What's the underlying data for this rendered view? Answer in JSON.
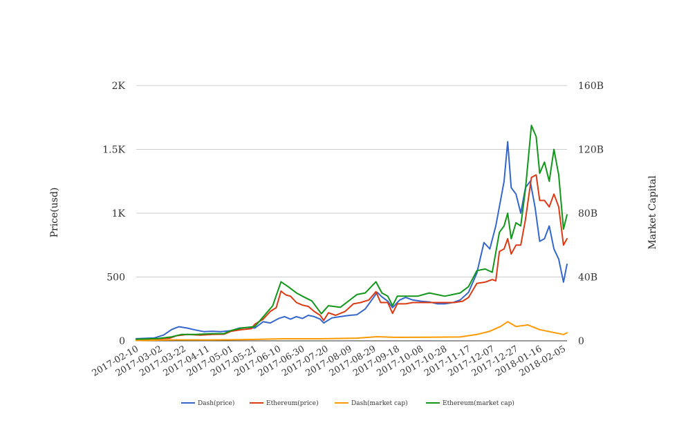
{
  "chart_data": {
    "type": "line",
    "title": "",
    "xlabel": "",
    "ylabel": "Price(usd)",
    "y2label": "Market Capital",
    "ylim": [
      0,
      2000
    ],
    "y2lim": [
      0,
      160
    ],
    "grid": true,
    "legend_position": "bottom",
    "x_start": "2017-02-10",
    "x_end": "2018-02-08",
    "x_ticks": [
      "2017-02-10",
      "2017-03-02",
      "2017-03-22",
      "2017-04-11",
      "2017-05-01",
      "2017-05-21",
      "2017-06-10",
      "2017-06-30",
      "2017-07-20",
      "2017-08-09",
      "2017-08-29",
      "2017-09-18",
      "2017-10-08",
      "2017-10-28",
      "2017-11-17",
      "2017-12-07",
      "2017-12-27",
      "2018-01-16",
      "2018-02-05"
    ],
    "y_ticks": [
      {
        "value": 0,
        "label": "0"
      },
      {
        "value": 500,
        "label": "500"
      },
      {
        "value": 1000,
        "label": "1K"
      },
      {
        "value": 1500,
        "label": "1.5K"
      },
      {
        "value": 2000,
        "label": "2K"
      }
    ],
    "y2_ticks": [
      {
        "value": 0,
        "label": "0"
      },
      {
        "value": 40,
        "label": "40B"
      },
      {
        "value": 80,
        "label": "80B"
      },
      {
        "value": 120,
        "label": "120B"
      },
      {
        "value": 160,
        "label": "160B"
      }
    ],
    "series": [
      {
        "name": "Dash(price)",
        "axis": "left",
        "color": "#3366cc",
        "points": [
          [
            "2017-02-10",
            17
          ],
          [
            "2017-02-25",
            22
          ],
          [
            "2017-03-05",
            45
          ],
          [
            "2017-03-12",
            90
          ],
          [
            "2017-03-18",
            110
          ],
          [
            "2017-03-25",
            100
          ],
          [
            "2017-04-01",
            85
          ],
          [
            "2017-04-08",
            72
          ],
          [
            "2017-04-15",
            75
          ],
          [
            "2017-04-22",
            72
          ],
          [
            "2017-05-01",
            80
          ],
          [
            "2017-05-08",
            100
          ],
          [
            "2017-05-15",
            105
          ],
          [
            "2017-05-21",
            100
          ],
          [
            "2017-05-28",
            150
          ],
          [
            "2017-06-03",
            140
          ],
          [
            "2017-06-10",
            175
          ],
          [
            "2017-06-15",
            190
          ],
          [
            "2017-06-20",
            170
          ],
          [
            "2017-06-25",
            190
          ],
          [
            "2017-06-30",
            175
          ],
          [
            "2017-07-05",
            200
          ],
          [
            "2017-07-10",
            190
          ],
          [
            "2017-07-15",
            170
          ],
          [
            "2017-07-18",
            140
          ],
          [
            "2017-07-25",
            180
          ],
          [
            "2017-08-01",
            190
          ],
          [
            "2017-08-09",
            200
          ],
          [
            "2017-08-15",
            205
          ],
          [
            "2017-08-22",
            250
          ],
          [
            "2017-08-29",
            340
          ],
          [
            "2017-09-01",
            380
          ],
          [
            "2017-09-05",
            345
          ],
          [
            "2017-09-10",
            310
          ],
          [
            "2017-09-14",
            260
          ],
          [
            "2017-09-20",
            320
          ],
          [
            "2017-09-25",
            340
          ],
          [
            "2017-10-01",
            320
          ],
          [
            "2017-10-08",
            310
          ],
          [
            "2017-10-15",
            305
          ],
          [
            "2017-10-22",
            290
          ],
          [
            "2017-10-28",
            290
          ],
          [
            "2017-11-04",
            300
          ],
          [
            "2017-11-10",
            320
          ],
          [
            "2017-11-17",
            380
          ],
          [
            "2017-11-24",
            530
          ],
          [
            "2017-11-30",
            770
          ],
          [
            "2017-12-05",
            720
          ],
          [
            "2017-12-10",
            900
          ],
          [
            "2017-12-14",
            1100
          ],
          [
            "2017-12-17",
            1250
          ],
          [
            "2017-12-20",
            1560
          ],
          [
            "2017-12-23",
            1200
          ],
          [
            "2017-12-27",
            1150
          ],
          [
            "2017-12-31",
            1000
          ],
          [
            "2018-01-04",
            1200
          ],
          [
            "2018-01-08",
            1250
          ],
          [
            "2018-01-12",
            1050
          ],
          [
            "2018-01-16",
            780
          ],
          [
            "2018-01-20",
            800
          ],
          [
            "2018-01-24",
            900
          ],
          [
            "2018-01-28",
            720
          ],
          [
            "2018-02-01",
            640
          ],
          [
            "2018-02-05",
            460
          ],
          [
            "2018-02-08",
            600
          ]
        ]
      },
      {
        "name": "Ethereum(price)",
        "axis": "left",
        "color": "#dc3912",
        "points": [
          [
            "2017-02-10",
            11
          ],
          [
            "2017-03-01",
            16
          ],
          [
            "2017-03-10",
            20
          ],
          [
            "2017-03-16",
            40
          ],
          [
            "2017-03-25",
            50
          ],
          [
            "2017-04-05",
            45
          ],
          [
            "2017-04-15",
            50
          ],
          [
            "2017-04-25",
            52
          ],
          [
            "2017-05-01",
            75
          ],
          [
            "2017-05-10",
            88
          ],
          [
            "2017-05-18",
            95
          ],
          [
            "2017-05-21",
            130
          ],
          [
            "2017-05-28",
            170
          ],
          [
            "2017-06-03",
            230
          ],
          [
            "2017-06-08",
            260
          ],
          [
            "2017-06-12",
            390
          ],
          [
            "2017-06-16",
            360
          ],
          [
            "2017-06-20",
            350
          ],
          [
            "2017-06-25",
            300
          ],
          [
            "2017-06-30",
            280
          ],
          [
            "2017-07-05",
            270
          ],
          [
            "2017-07-10",
            230
          ],
          [
            "2017-07-15",
            200
          ],
          [
            "2017-07-18",
            160
          ],
          [
            "2017-07-22",
            220
          ],
          [
            "2017-07-28",
            200
          ],
          [
            "2017-08-05",
            230
          ],
          [
            "2017-08-12",
            290
          ],
          [
            "2017-08-18",
            300
          ],
          [
            "2017-08-25",
            320
          ],
          [
            "2017-08-31",
            385
          ],
          [
            "2017-09-04",
            300
          ],
          [
            "2017-09-10",
            300
          ],
          [
            "2017-09-14",
            215
          ],
          [
            "2017-09-18",
            290
          ],
          [
            "2017-09-25",
            290
          ],
          [
            "2017-10-01",
            300
          ],
          [
            "2017-10-10",
            300
          ],
          [
            "2017-10-20",
            300
          ],
          [
            "2017-10-28",
            300
          ],
          [
            "2017-11-05",
            300
          ],
          [
            "2017-11-12",
            310
          ],
          [
            "2017-11-17",
            340
          ],
          [
            "2017-11-24",
            450
          ],
          [
            "2017-12-01",
            460
          ],
          [
            "2017-12-07",
            480
          ],
          [
            "2017-12-10",
            470
          ],
          [
            "2017-12-13",
            700
          ],
          [
            "2017-12-17",
            720
          ],
          [
            "2017-12-20",
            800
          ],
          [
            "2017-12-23",
            680
          ],
          [
            "2017-12-27",
            750
          ],
          [
            "2017-12-31",
            750
          ],
          [
            "2018-01-04",
            950
          ],
          [
            "2018-01-09",
            1280
          ],
          [
            "2018-01-13",
            1300
          ],
          [
            "2018-01-16",
            1100
          ],
          [
            "2018-01-20",
            1100
          ],
          [
            "2018-01-24",
            1050
          ],
          [
            "2018-01-28",
            1150
          ],
          [
            "2018-02-01",
            1050
          ],
          [
            "2018-02-05",
            750
          ],
          [
            "2018-02-08",
            800
          ]
        ]
      },
      {
        "name": "Dash(market cap)",
        "axis": "right",
        "color": "#ff9900",
        "points": [
          [
            "2017-02-10",
            0.2
          ],
          [
            "2017-03-15",
            0.6
          ],
          [
            "2017-04-15",
            0.5
          ],
          [
            "2017-05-15",
            0.8
          ],
          [
            "2017-06-15",
            1.3
          ],
          [
            "2017-07-15",
            1.3
          ],
          [
            "2017-08-15",
            1.7
          ],
          [
            "2017-09-01",
            2.6
          ],
          [
            "2017-09-15",
            2.2
          ],
          [
            "2017-10-15",
            2.3
          ],
          [
            "2017-11-10",
            2.4
          ],
          [
            "2017-11-24",
            4.0
          ],
          [
            "2017-12-05",
            6.0
          ],
          [
            "2017-12-14",
            9.0
          ],
          [
            "2017-12-20",
            12.0
          ],
          [
            "2017-12-27",
            9.0
          ],
          [
            "2018-01-06",
            10.0
          ],
          [
            "2018-01-16",
            7.0
          ],
          [
            "2018-02-05",
            4.0
          ],
          [
            "2018-02-08",
            5.0
          ]
        ]
      },
      {
        "name": "Ethereum(market cap)",
        "axis": "right",
        "color": "#109618",
        "points": [
          [
            "2017-02-10",
            1.0
          ],
          [
            "2017-03-01",
            1.5
          ],
          [
            "2017-03-12",
            2.5
          ],
          [
            "2017-03-20",
            4.0
          ],
          [
            "2017-04-01",
            4.0
          ],
          [
            "2017-04-15",
            4.5
          ],
          [
            "2017-04-25",
            4.5
          ],
          [
            "2017-05-01",
            6.5
          ],
          [
            "2017-05-10",
            8.0
          ],
          [
            "2017-05-21",
            9.0
          ],
          [
            "2017-05-28",
            15.0
          ],
          [
            "2017-06-05",
            22.0
          ],
          [
            "2017-06-12",
            37.0
          ],
          [
            "2017-06-18",
            34.0
          ],
          [
            "2017-06-25",
            30.0
          ],
          [
            "2017-06-30",
            28.0
          ],
          [
            "2017-07-08",
            25.0
          ],
          [
            "2017-07-16",
            17.0
          ],
          [
            "2017-07-22",
            22.0
          ],
          [
            "2017-08-01",
            21.0
          ],
          [
            "2017-08-08",
            25.0
          ],
          [
            "2017-08-15",
            29.0
          ],
          [
            "2017-08-22",
            30.0
          ],
          [
            "2017-08-31",
            37.0
          ],
          [
            "2017-09-05",
            30.0
          ],
          [
            "2017-09-10",
            28.0
          ],
          [
            "2017-09-14",
            22.0
          ],
          [
            "2017-09-18",
            28.0
          ],
          [
            "2017-09-25",
            28.0
          ],
          [
            "2017-10-05",
            28.0
          ],
          [
            "2017-10-15",
            30.0
          ],
          [
            "2017-10-28",
            28.0
          ],
          [
            "2017-11-10",
            30.0
          ],
          [
            "2017-11-17",
            34.0
          ],
          [
            "2017-11-24",
            44.0
          ],
          [
            "2017-12-01",
            45.0
          ],
          [
            "2017-12-07",
            43.0
          ],
          [
            "2017-12-13",
            68.0
          ],
          [
            "2017-12-17",
            72.0
          ],
          [
            "2017-12-20",
            80.0
          ],
          [
            "2017-12-23",
            64.0
          ],
          [
            "2017-12-27",
            74.0
          ],
          [
            "2017-12-31",
            72.0
          ],
          [
            "2018-01-04",
            95.0
          ],
          [
            "2018-01-09",
            135.0
          ],
          [
            "2018-01-13",
            128.0
          ],
          [
            "2018-01-16",
            105.0
          ],
          [
            "2018-01-20",
            112.0
          ],
          [
            "2018-01-24",
            100.0
          ],
          [
            "2018-01-28",
            120.0
          ],
          [
            "2018-02-01",
            104.0
          ],
          [
            "2018-02-05",
            70.0
          ],
          [
            "2018-02-08",
            79.0
          ]
        ]
      }
    ]
  }
}
